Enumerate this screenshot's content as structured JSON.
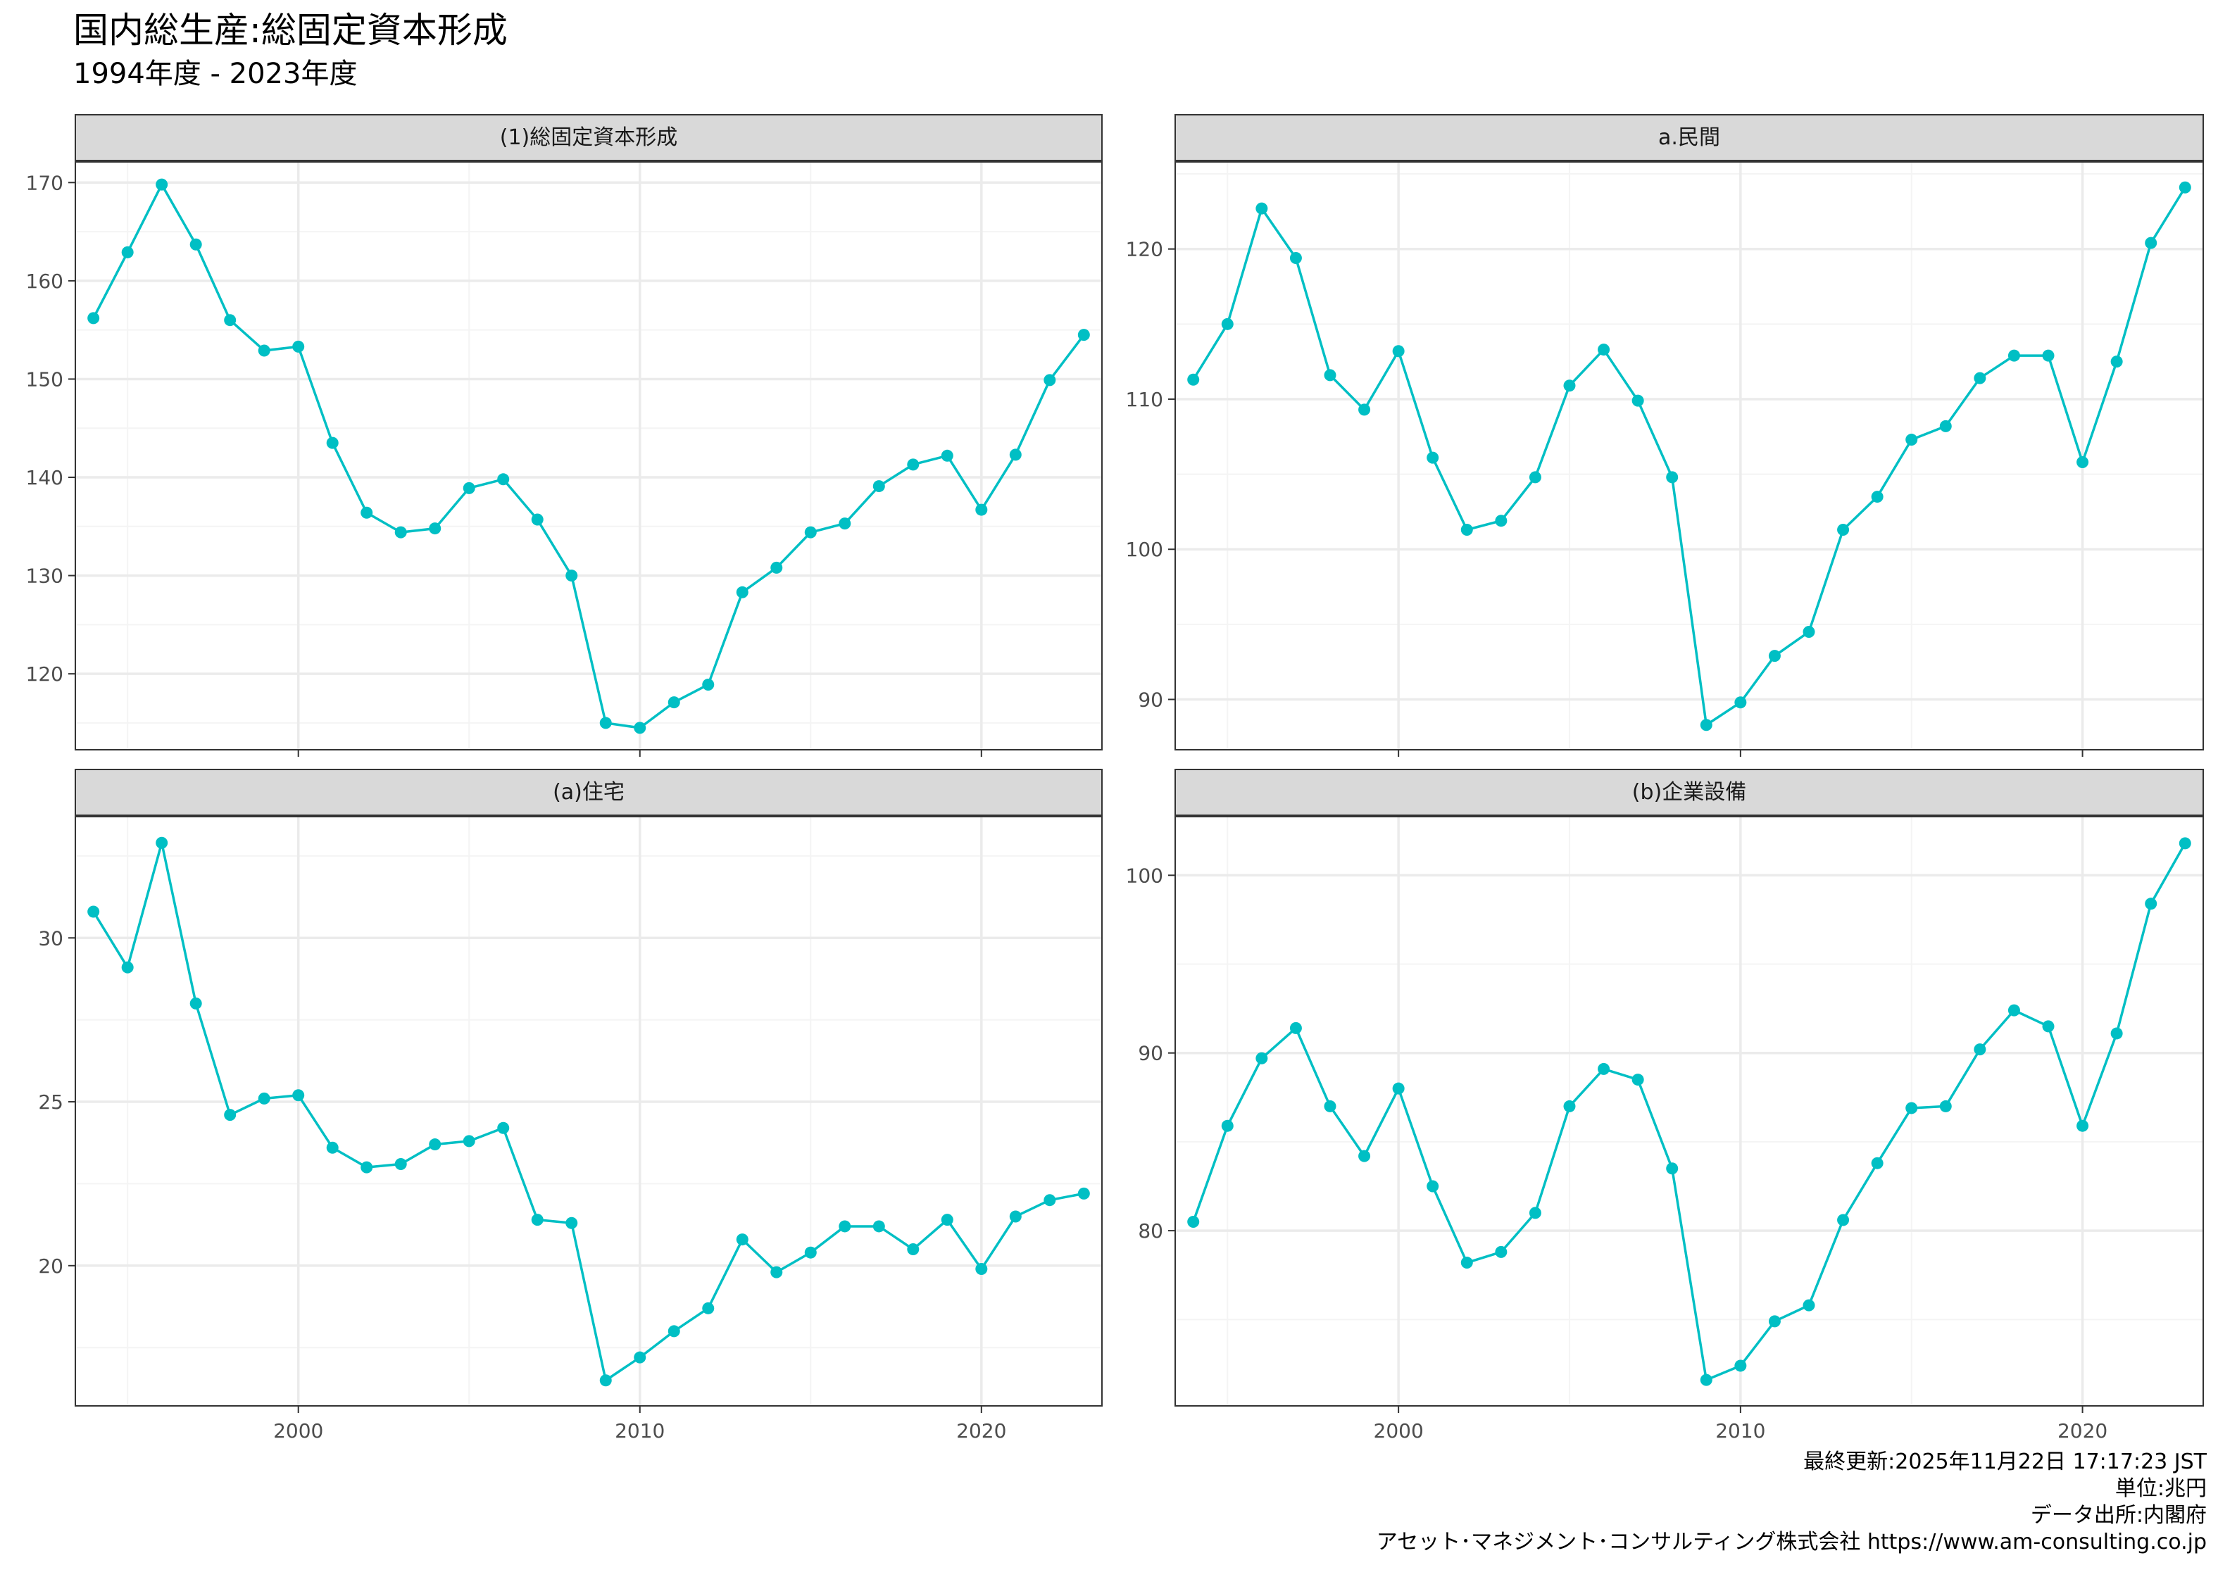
{
  "header": {
    "title": "国内総生産:総固定資本形成",
    "subtitle": "1994年度 - 2023年度"
  },
  "caption": {
    "lines": [
      "最終更新:2025年11月22日 17:17:23 JST",
      "単位:兆円",
      "データ出所:内閣府",
      "アセット･マネジメント･コンサルティング株式会社 https://www.am-consulting.co.jp"
    ]
  },
  "colors": {
    "series": "#00BFC4",
    "strip_bg": "#D9D9D9",
    "grid_major": "#EBEBEB",
    "grid_minor": "#F4F4F4",
    "border": "#333333",
    "tick_text": "#4D4D4D"
  },
  "chart_data": [
    {
      "type": "line",
      "facet_label": "(1)総固定資本形成",
      "x": [
        1994,
        1995,
        1996,
        1997,
        1998,
        1999,
        2000,
        2001,
        2002,
        2003,
        2004,
        2005,
        2006,
        2007,
        2008,
        2009,
        2010,
        2011,
        2012,
        2013,
        2014,
        2015,
        2016,
        2017,
        2018,
        2019,
        2020,
        2021,
        2022,
        2023
      ],
      "y": [
        156.2,
        162.9,
        169.8,
        163.7,
        156.0,
        152.9,
        153.3,
        143.5,
        136.4,
        134.4,
        134.8,
        138.9,
        139.8,
        135.7,
        130.0,
        115.0,
        114.5,
        117.1,
        118.9,
        128.3,
        130.8,
        134.4,
        135.3,
        139.1,
        141.3,
        142.2,
        136.7,
        142.3,
        149.9,
        154.5
      ],
      "xlim": [
        1993.45,
        2023.55
      ],
      "ylim": [
        112.2,
        172.1
      ],
      "x_ticks": [
        2000,
        2010,
        2020
      ],
      "x_tick_labels": [
        "2000",
        "2010",
        "2020"
      ],
      "y_ticks": [
        120,
        130,
        140,
        150,
        160,
        170
      ],
      "y_tick_labels": [
        "120",
        "130",
        "140",
        "150",
        "160",
        "170"
      ],
      "grid": true
    },
    {
      "type": "line",
      "facet_label": "a.民間",
      "x": [
        1994,
        1995,
        1996,
        1997,
        1998,
        1999,
        2000,
        2001,
        2002,
        2003,
        2004,
        2005,
        2006,
        2007,
        2008,
        2009,
        2010,
        2011,
        2012,
        2013,
        2014,
        2015,
        2016,
        2017,
        2018,
        2019,
        2020,
        2021,
        2022,
        2023
      ],
      "y": [
        111.3,
        115.0,
        122.7,
        119.4,
        111.6,
        109.3,
        113.2,
        106.1,
        101.3,
        101.9,
        104.8,
        110.9,
        113.3,
        109.9,
        104.8,
        88.3,
        89.8,
        92.9,
        94.5,
        101.3,
        103.5,
        107.3,
        108.2,
        111.4,
        112.9,
        112.9,
        105.8,
        112.5,
        120.4,
        124.1
      ],
      "xlim": [
        1993.45,
        2023.55
      ],
      "ylim": [
        86.6,
        125.8
      ],
      "x_ticks": [
        2000,
        2010,
        2020
      ],
      "x_tick_labels": [
        "2000",
        "2010",
        "2020"
      ],
      "y_ticks": [
        90,
        100,
        110,
        120
      ],
      "y_tick_labels": [
        "90",
        "100",
        "110",
        "120"
      ],
      "grid": true
    },
    {
      "type": "line",
      "facet_label": "(a)住宅",
      "x": [
        1994,
        1995,
        1996,
        1997,
        1998,
        1999,
        2000,
        2001,
        2002,
        2003,
        2004,
        2005,
        2006,
        2007,
        2008,
        2009,
        2010,
        2011,
        2012,
        2013,
        2014,
        2015,
        2016,
        2017,
        2018,
        2019,
        2020,
        2021,
        2022,
        2023
      ],
      "y": [
        30.8,
        29.1,
        32.9,
        28.0,
        24.6,
        25.1,
        25.2,
        23.6,
        23.0,
        23.1,
        23.7,
        23.8,
        24.2,
        21.4,
        21.3,
        16.5,
        17.2,
        18.0,
        18.7,
        20.8,
        19.8,
        20.4,
        21.2,
        21.2,
        20.5,
        21.4,
        19.9,
        21.5,
        22.0,
        22.2
      ],
      "xlim": [
        1993.45,
        2023.55
      ],
      "ylim": [
        15.7,
        33.7
      ],
      "x_ticks": [
        2000,
        2010,
        2020
      ],
      "x_tick_labels": [
        "2000",
        "2010",
        "2020"
      ],
      "y_ticks": [
        20,
        25,
        30
      ],
      "y_tick_labels": [
        "20",
        "25",
        "30"
      ],
      "grid": true
    },
    {
      "type": "line",
      "facet_label": "(b)企業設備",
      "x": [
        1994,
        1995,
        1996,
        1997,
        1998,
        1999,
        2000,
        2001,
        2002,
        2003,
        2004,
        2005,
        2006,
        2007,
        2008,
        2009,
        2010,
        2011,
        2012,
        2013,
        2014,
        2015,
        2016,
        2017,
        2018,
        2019,
        2020,
        2021,
        2022,
        2023
      ],
      "y": [
        80.5,
        85.9,
        89.7,
        91.4,
        87.0,
        84.2,
        88.0,
        82.5,
        78.2,
        78.8,
        81.0,
        87.0,
        89.1,
        88.5,
        83.5,
        71.6,
        72.4,
        74.9,
        75.8,
        80.6,
        83.8,
        86.9,
        87.0,
        90.2,
        92.4,
        91.5,
        85.9,
        91.1,
        98.4,
        101.8
      ],
      "xlim": [
        1993.45,
        2023.55
      ],
      "ylim": [
        70.1,
        103.3
      ],
      "x_ticks": [
        2000,
        2010,
        2020
      ],
      "x_tick_labels": [
        "2000",
        "2010",
        "2020"
      ],
      "y_ticks": [
        80,
        90,
        100
      ],
      "y_tick_labels": [
        "80",
        "90",
        "100"
      ],
      "grid": true
    }
  ]
}
